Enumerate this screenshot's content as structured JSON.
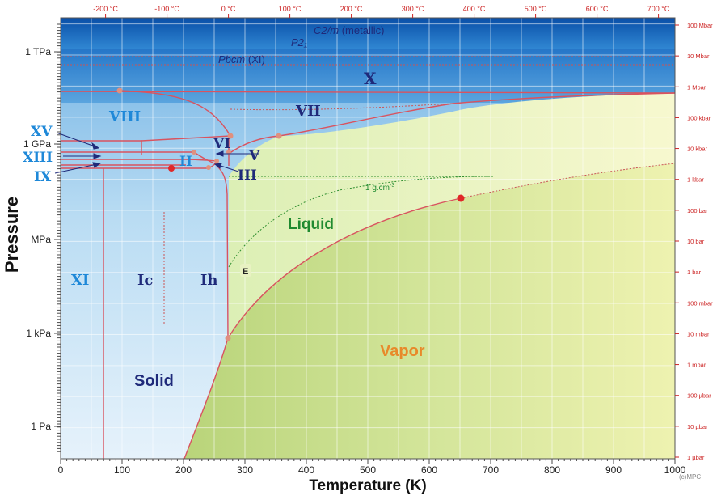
{
  "title": "",
  "axes": {
    "x_label": "Temperature (K)",
    "y_label": "Pressure",
    "x_ticks": [
      "0",
      "100",
      "200",
      "300",
      "400",
      "500",
      "600",
      "700",
      "800",
      "900",
      "1000"
    ],
    "y_ticks_left": [
      "1 TPa",
      "1 GPa",
      "MPa",
      "1 kPa",
      "1 Pa"
    ],
    "top_ticks": [
      "-200 °C",
      "-100 °C",
      "0 °C",
      "100 °C",
      "200 °C",
      "300 °C",
      "400 °C",
      "500 °C",
      "600 °C",
      "700 °C"
    ],
    "right_ticks": [
      "100 Mbar",
      "10 Mbar",
      "1 Mbar",
      "100 kbar",
      "10 kbar",
      "1 kbar",
      "100 bar",
      "10 bar",
      "1 bar",
      "100 mbar",
      "10 mbar",
      "1 mbar",
      "100 µbar",
      "10 µbar",
      "1 µbar"
    ]
  },
  "phases": {
    "c2m": "C2/m",
    "c2m_suffix": "(metallic)",
    "p21": "P2₁",
    "pbcm": "Pbcm",
    "pbcm_suffix": "(XI)",
    "x": "X",
    "vii": "VII",
    "viii": "VIII",
    "vi": "VI",
    "v": "V",
    "iii": "III",
    "ii": "II",
    "xv": "XV",
    "xiii": "XIII",
    "ix": "IX",
    "xi": "XI",
    "ic": "Ic",
    "ih": "Ih",
    "solid": "Solid",
    "liquid": "Liquid",
    "vapor": "Vapor",
    "e": "E"
  },
  "annotations": {
    "density": "1 g.cm",
    "density_sup": "-3",
    "copyright": "(c)MPC"
  },
  "colors": {
    "solid_light": "#cde6f7",
    "solid_mid": "#8fc3ea",
    "high_pressure": "#1565c0",
    "liquid": "#e8f2c2",
    "vapor": "#c6dc86",
    "boundary": "#d9535f",
    "label_dark": "#1f2a7a",
    "label_light": "#1e88d8",
    "liquid_label": "#1f8a2f",
    "vapor_label": "#e8892a",
    "right_axis": "#cc2222"
  },
  "chart_data": {
    "type": "phase-diagram",
    "x_unit": "K",
    "xlim": [
      0,
      1000
    ],
    "triple_points_K": [
      251,
      256,
      273,
      355,
      218,
      278
    ],
    "critical_point": {
      "T_K": 647,
      "P": "22 MPa"
    }
  }
}
